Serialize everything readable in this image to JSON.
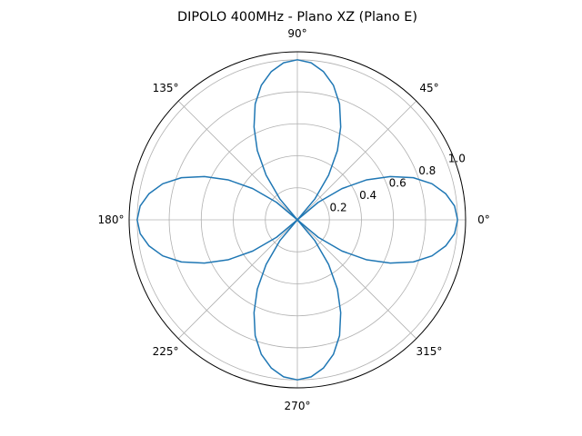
{
  "chart_data": {
    "type": "line",
    "projection": "polar",
    "title": "DIPOLO 400MHz - Plano XZ (Plano E)",
    "theta_unit": "degrees",
    "angle_tick_labels": [
      "0°",
      "45°",
      "90°",
      "135°",
      "180°",
      "225°",
      "270°",
      "315°"
    ],
    "radial_tick_labels": [
      "0.2",
      "0.4",
      "0.6",
      "0.8",
      "1.0"
    ],
    "radial_ticks": [
      0.2,
      0.4,
      0.6,
      0.8,
      1.0
    ],
    "rlim": [
      0,
      1.05
    ],
    "grid": true,
    "series": [
      {
        "color": "#1f77b4",
        "theta_start_deg": 0,
        "theta_step_deg": 10,
        "r": [
          1.0,
          0.985,
          0.94,
          0.87,
          0.77,
          0.64,
          0.5,
          0.34,
          0.17,
          0.0,
          0.17,
          0.34,
          0.5,
          0.64,
          0.77,
          0.87,
          0.94,
          0.985,
          1.0,
          0.985,
          0.94,
          0.87,
          0.77,
          0.64,
          0.5,
          0.34,
          0.17,
          0.0,
          0.17,
          0.34,
          0.5,
          0.64,
          0.77,
          0.87,
          0.94,
          0.985,
          1.0
        ],
        "display_theta_deg": [
          0,
          5,
          10,
          15,
          20,
          25,
          30,
          35,
          40,
          45,
          50,
          55,
          60,
          65,
          70,
          75,
          80,
          85,
          90,
          95,
          100,
          105,
          110,
          115,
          120,
          125,
          130,
          135,
          140,
          145,
          150,
          155,
          160,
          165,
          170,
          175,
          180
        ]
      }
    ]
  }
}
